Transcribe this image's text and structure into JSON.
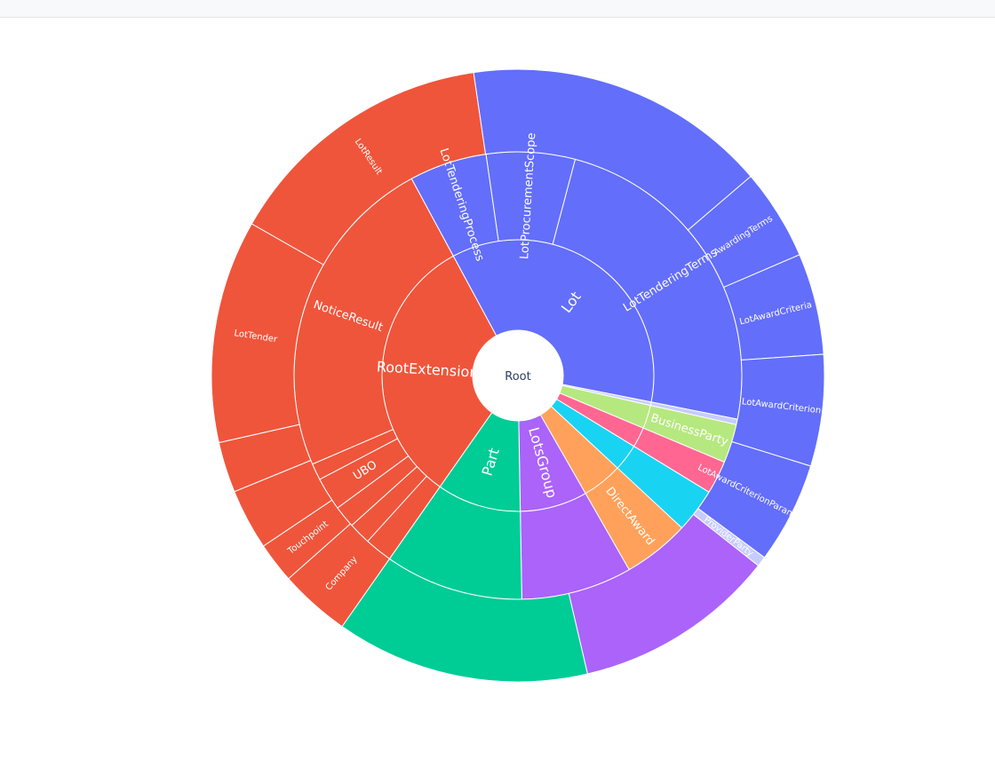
{
  "colors": {
    "orange": "#EF553B",
    "blue": "#636EFA",
    "green": "#00CC96",
    "purple": "#AB63FA",
    "amber": "#FFA15A",
    "cyan": "#19D3F3",
    "pink": "#FF6692",
    "lime": "#B6E880",
    "rose": "#FF97FF",
    "sky": "#C7CCFF"
  },
  "chart_data": {
    "type": "sunburst",
    "root": {
      "label": "Root"
    },
    "ring1": [
      {
        "label": "RootExtension",
        "value": 81,
        "color": "orange"
      },
      {
        "label": "Lot",
        "value": 90,
        "color": "blue"
      },
      {
        "label": "",
        "value": 1,
        "color": "sky"
      },
      {
        "label": "",
        "value": 7,
        "color": "lime"
      },
      {
        "label": "",
        "value": 6,
        "color": "pink"
      },
      {
        "label": "",
        "value": 8,
        "color": "cyan"
      },
      {
        "label": "",
        "value": 12,
        "color": "amber"
      },
      {
        "label": "LotsGroup",
        "value": 20,
        "color": "purple"
      },
      {
        "label": "Part",
        "value": 25,
        "color": "green"
      }
    ],
    "ring2": [
      {
        "label": "",
        "value": 5,
        "color": "orange"
      },
      {
        "label": "",
        "value": 4,
        "color": "orange"
      },
      {
        "label": "",
        "value": 4,
        "color": "orange"
      },
      {
        "label": "UBO",
        "value": 6,
        "color": "orange"
      },
      {
        "label": "",
        "value": 3,
        "color": "orange"
      },
      {
        "label": "NoticeResult",
        "value": 59,
        "color": "orange"
      },
      {
        "label": "LotTenderingProcess",
        "value": 14,
        "color": "blue"
      },
      {
        "label": "LotProcurementScope",
        "value": 16,
        "color": "blue"
      },
      {
        "label": "LotTenderingTerms",
        "value": 60,
        "color": "blue"
      },
      {
        "label": "",
        "value": 1,
        "color": "sky"
      },
      {
        "label": "BusinessParty",
        "value": 7,
        "color": "lime"
      },
      {
        "label": "",
        "value": 6,
        "color": "pink"
      },
      {
        "label": "",
        "value": 8,
        "color": "cyan"
      },
      {
        "label": "DirectAward",
        "value": 12,
        "color": "amber"
      },
      {
        "label": "",
        "value": 20,
        "color": "purple"
      },
      {
        "label": "",
        "value": 25,
        "color": "green"
      }
    ],
    "ring3": [
      {
        "label": "Company",
        "value": 7,
        "color": "orange"
      },
      {
        "label": "Touchpoint",
        "value": 4,
        "color": "orange"
      },
      {
        "label": "",
        "value": 6,
        "color": "orange"
      },
      {
        "label": "",
        "value": 5,
        "color": "orange"
      },
      {
        "label": "LotTender",
        "value": 22,
        "color": "orange"
      },
      {
        "label": "LotResult",
        "value": 27,
        "color": "orange"
      },
      {
        "label": "",
        "value": 30,
        "color": "blue"
      },
      {
        "label": "AwardingTerms",
        "value": 9,
        "color": "blue"
      },
      {
        "label": "LotAwardCriteria",
        "value": 10,
        "color": "blue"
      },
      {
        "label": "LotAwardCriterion",
        "value": 11,
        "color": "blue"
      },
      {
        "label": "LotAwardCriterionParameter",
        "value": 10,
        "color": "blue"
      },
      {
        "label": "ProviderParty",
        "value": 1,
        "color": "sky"
      },
      {
        "label": "",
        "value": 20,
        "color": "purple"
      },
      {
        "label": "",
        "value": 25,
        "color": "green"
      }
    ]
  }
}
